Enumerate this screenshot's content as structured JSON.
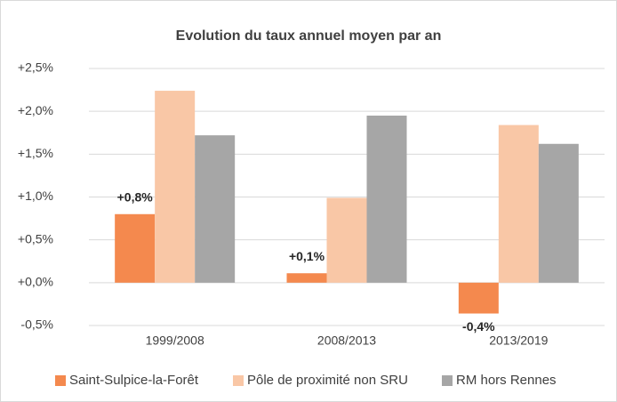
{
  "chart_data": {
    "type": "bar",
    "title": "Evolution du taux annuel moyen par an",
    "categories": [
      "1999/2008",
      "2008/2013",
      "2013/2019"
    ],
    "series": [
      {
        "name": "Saint-Sulpice-la-Forêt",
        "color": "#f4894e",
        "values": [
          0.8,
          0.11,
          -0.36
        ],
        "value_labels": [
          "+0,8%",
          "+0,1%",
          "-0,4%"
        ]
      },
      {
        "name": "Pôle de proximité non SRU",
        "color": "#f9c7a6",
        "values": [
          2.24,
          0.99,
          1.84
        ]
      },
      {
        "name": "RM hors Rennes",
        "color": "#a6a6a6",
        "values": [
          1.72,
          1.95,
          1.62
        ]
      }
    ],
    "ylim": [
      -0.5,
      2.5
    ],
    "yticks": [
      {
        "value": -0.5,
        "label": "-0,5%"
      },
      {
        "value": 0,
        "label": "+0,0%"
      },
      {
        "value": 0.5,
        "label": "+0,5%"
      },
      {
        "value": 1,
        "label": "+1,0%"
      },
      {
        "value": 1.5,
        "label": "+1,5%"
      },
      {
        "value": 2,
        "label": "+2,0%"
      },
      {
        "value": 2.5,
        "label": "+2,5%"
      }
    ],
    "grid": true,
    "legend": "bottom"
  }
}
